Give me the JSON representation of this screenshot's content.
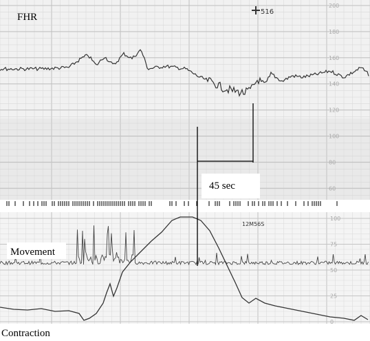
{
  "header": {
    "fhr_label": "FHR",
    "movement_label": "Movement",
    "contraction_label": "Contraction"
  },
  "annotations": {
    "interval": "45 sec",
    "marker": "516",
    "timestamp": "12M56S"
  },
  "fhr_scale": [
    200,
    180,
    160,
    140,
    120,
    100,
    80,
    60
  ],
  "toco_scale": [
    100,
    75,
    50,
    25,
    0
  ]
}
